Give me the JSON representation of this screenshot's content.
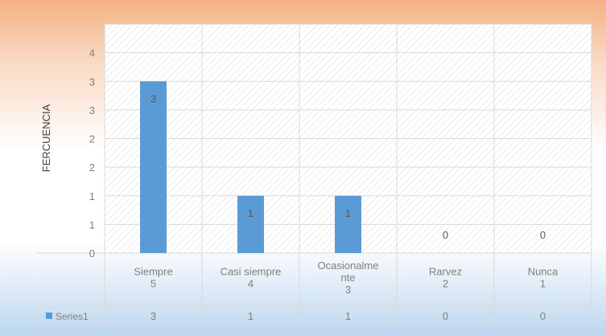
{
  "chart_data": {
    "type": "bar",
    "title": "",
    "xlabel": "",
    "ylabel": "FERCUENCIA",
    "ylim": [
      0,
      4
    ],
    "y_tick_labels": [
      "0",
      "1",
      "1",
      "2",
      "2",
      "3",
      "3",
      "4"
    ],
    "categories": [
      "Siempre",
      "Casi siempre",
      "Ocasionalmente",
      "Rarvez",
      "Nunca"
    ],
    "category_display_lines": [
      [
        "Siempre"
      ],
      [
        "Casi siempre"
      ],
      [
        "Ocasionalme",
        "nte"
      ],
      [
        "Rarvez"
      ],
      [
        "Nunca"
      ]
    ],
    "category_codes": [
      "5",
      "4",
      "3",
      "2",
      "1"
    ],
    "series": [
      {
        "name": "Series1",
        "values": [
          3,
          1,
          1,
          0,
          0
        ],
        "color": "#5b9bd5"
      }
    ],
    "data_labels": [
      "3",
      "1",
      "1",
      "0",
      "0"
    ],
    "grid": true,
    "legend": "data-table-left"
  }
}
